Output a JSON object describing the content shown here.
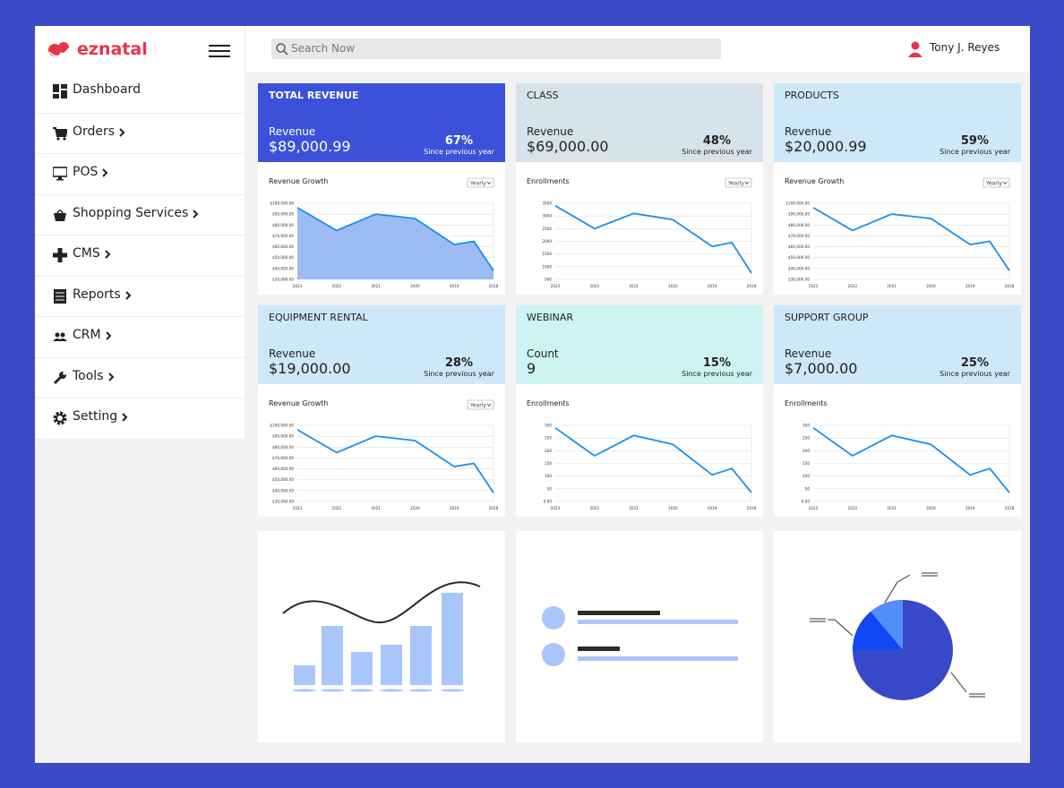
{
  "header": {
    "brand": "eznatal",
    "search_placeholder": "Search Now",
    "user": "Tony J. Reyes"
  },
  "sidebar": {
    "items": [
      {
        "label": "Dashboard",
        "submenu": false
      },
      {
        "label": "Orders",
        "submenu": true
      },
      {
        "label": "POS",
        "submenu": true
      },
      {
        "label": "Shopping Services",
        "submenu": true
      },
      {
        "label": "CMS",
        "submenu": true
      },
      {
        "label": "Reports",
        "submenu": true
      },
      {
        "label": "CRM",
        "submenu": true
      },
      {
        "label": "Tools",
        "submenu": true
      },
      {
        "label": "Setting",
        "submenu": true
      }
    ]
  },
  "cards": [
    {
      "title": "TOTAL REVENUE",
      "header_color": "#3b51d9",
      "header_text_color": "#ffffff",
      "metric_label": "Revenue",
      "metric_value": "$89,000.99",
      "change": "67%",
      "change_note": "Since previous year",
      "chart": {
        "type": "area",
        "title": "Revenue Growth",
        "select": "Yearly",
        "color": "#1a8fe8",
        "fill": "#9dbcf3",
        "x": [
          2023,
          2022,
          2021,
          2020,
          2019,
          2018.5,
          2018
        ],
        "values": [
          96000,
          75000,
          90000,
          86000,
          62000,
          65000,
          38000
        ],
        "xlim": [
          2023,
          2018
        ],
        "xticks": [
          2023,
          2022,
          2021,
          2020,
          2019,
          2018
        ],
        "ylim": [
          30000,
          100000
        ],
        "yticks": [
          {
            "value": 30000,
            "label": "$30,000.00"
          },
          {
            "value": 40000,
            "label": "$40,000.00"
          },
          {
            "value": 50000,
            "label": "$50,000.00"
          },
          {
            "value": 60000,
            "label": "$60,000.00"
          },
          {
            "value": 70000,
            "label": "$70,000.00"
          },
          {
            "value": 80000,
            "label": "$80,000.00"
          },
          {
            "value": 90000,
            "label": "$90,000.00"
          },
          {
            "value": 100000,
            "label": "$100,000.00"
          }
        ]
      }
    },
    {
      "title": "CLASS",
      "header_color": "#d6e3ea",
      "header_text_color": "#222222",
      "metric_label": "Revenue",
      "metric_value": "$69,000.00",
      "change": "48%",
      "change_note": "Since previous year",
      "chart": {
        "type": "line",
        "title": "Enrollments",
        "select": "Yearly",
        "color": "#1a8fe8",
        "x": [
          2023,
          2022,
          2021,
          2020,
          2019,
          2018.5,
          2018
        ],
        "values": [
          3400,
          2500,
          3100,
          2850,
          1800,
          1950,
          750
        ],
        "xlim": [
          2023,
          2018
        ],
        "xticks": [
          2023,
          2022,
          2021,
          2020,
          2019,
          2018
        ],
        "ylim": [
          500,
          3500
        ],
        "yticks": [
          500,
          1000,
          1500,
          2000,
          2500,
          3000,
          3500
        ]
      }
    },
    {
      "title": "PRODUCTS",
      "header_color": "#cde8f8",
      "header_text_color": "#222222",
      "metric_label": "Revenue",
      "metric_value": "$20,000.99",
      "change": "59%",
      "change_note": "Since previous year",
      "chart": {
        "type": "line",
        "title": "Revenue Growth",
        "select": "Yearly",
        "color": "#1a8fe8",
        "x": [
          2023,
          2022,
          2021,
          2020,
          2019,
          2018.5,
          2018
        ],
        "values": [
          96000,
          75000,
          90000,
          86000,
          62000,
          65000,
          38000
        ],
        "xlim": [
          2023,
          2018
        ],
        "xticks": [
          2023,
          2022,
          2021,
          2020,
          2019,
          2018
        ],
        "ylim": [
          30000,
          100000
        ],
        "yticks": [
          {
            "value": 30000,
            "label": "$30,000.00"
          },
          {
            "value": 40000,
            "label": "$40,000.00"
          },
          {
            "value": 50000,
            "label": "$50,000.00"
          },
          {
            "value": 60000,
            "label": "$60,000.00"
          },
          {
            "value": 70000,
            "label": "$70,000.00"
          },
          {
            "value": 80000,
            "label": "$80,000.00"
          },
          {
            "value": 90000,
            "label": "$90,000.00"
          },
          {
            "value": 100000,
            "label": "$100,000.00"
          }
        ]
      }
    },
    {
      "title": "EQUIPMENT RENTAL",
      "header_color": "#cde8f8",
      "header_text_color": "#222222",
      "metric_label": "Revenue",
      "metric_value": "$19,000.00",
      "change": "28%",
      "change_note": "Since previous year",
      "chart": {
        "type": "line",
        "title": "Revenue Growth",
        "select": "Yearly",
        "color": "#1a8fe8",
        "x": [
          2023,
          2022,
          2021,
          2020,
          2019,
          2018.5,
          2018
        ],
        "values": [
          96000,
          75000,
          90000,
          86000,
          62000,
          65000,
          38000
        ],
        "xlim": [
          2023,
          2018
        ],
        "xticks": [
          2023,
          2022,
          2021,
          2020,
          2019,
          2018
        ],
        "ylim": [
          30000,
          100000
        ],
        "yticks": [
          {
            "value": 30000,
            "label": "$30,000.00"
          },
          {
            "value": 40000,
            "label": "$40,000.00"
          },
          {
            "value": 50000,
            "label": "$50,000.00"
          },
          {
            "value": 60000,
            "label": "$60,000.00"
          },
          {
            "value": 70000,
            "label": "$70,000.00"
          },
          {
            "value": 80000,
            "label": "$80,000.00"
          },
          {
            "value": 90000,
            "label": "$90,000.00"
          },
          {
            "value": 100000,
            "label": "$100,000.00"
          }
        ]
      }
    },
    {
      "title": "WEBINAR",
      "header_color": "#cdf3f2",
      "header_text_color": "#222222",
      "metric_label": "Count",
      "metric_value": "9",
      "change": "15%",
      "change_note": "Since previous year",
      "chart": {
        "type": "line",
        "title": "Enrollments",
        "color": "#1a8fe8",
        "x": [
          2023,
          2022,
          2021,
          2020,
          2019,
          2018.5,
          2018
        ],
        "values": [
          290,
          180,
          260,
          225,
          105,
          130,
          35
        ],
        "xlim": [
          2023,
          2018
        ],
        "xticks": [
          2023,
          2022,
          2021,
          2020,
          2019,
          2018
        ],
        "ylim": [
          0,
          300
        ],
        "yticks": [
          {
            "value": 0,
            "label": "0.00"
          },
          50,
          100,
          150,
          200,
          250,
          300
        ]
      }
    },
    {
      "title": "SUPPORT GROUP",
      "header_color": "#cde8f8",
      "header_text_color": "#222222",
      "metric_label": "Revenue",
      "metric_value": "$7,000.00",
      "change": "25%",
      "change_note": "Since previous year",
      "chart": {
        "type": "line",
        "title": "Enrollments",
        "color": "#1a8fe8",
        "x": [
          2023,
          2022,
          2021,
          2020,
          2019,
          2018.5,
          2018
        ],
        "values": [
          290,
          180,
          260,
          225,
          105,
          130,
          35
        ],
        "xlim": [
          2023,
          2018
        ],
        "xticks": [
          2023,
          2022,
          2021,
          2020,
          2019,
          2018
        ],
        "ylim": [
          0,
          300
        ],
        "yticks": [
          {
            "value": 0,
            "label": "0.00"
          },
          50,
          100,
          150,
          200,
          250,
          300
        ]
      }
    }
  ]
}
